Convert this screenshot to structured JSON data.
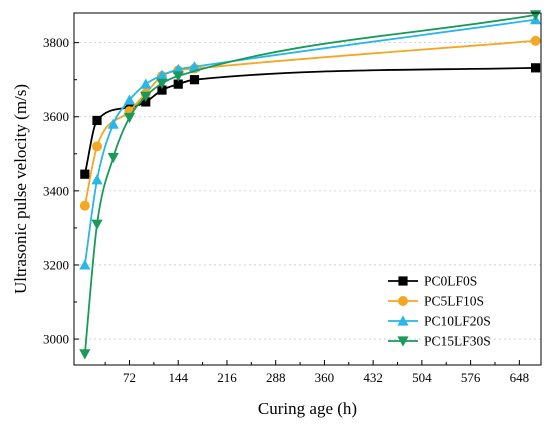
{
  "chart_data": {
    "type": "line",
    "xlabel": "Curing age (h)",
    "ylabel": "Ultrasonic pulse velocity (m/s)",
    "xlim": [
      -10,
      680
    ],
    "ylim": [
      2930,
      3880
    ],
    "x_ticks": [
      72,
      144,
      216,
      288,
      360,
      432,
      504,
      576,
      648
    ],
    "y_ticks": [
      3000,
      3200,
      3400,
      3600,
      3800
    ],
    "grid": "dashed-horizontal",
    "legend_position": "bottom-right",
    "series": [
      {
        "name": "PC0LF0S",
        "color": "#000000",
        "marker": "square",
        "x": [
          6,
          24,
          72,
          96,
          120,
          144,
          168,
          672
        ],
        "y": [
          3445,
          3590,
          3625,
          3640,
          3672,
          3688,
          3700,
          3732
        ]
      },
      {
        "name": "PC5LF10S",
        "color": "#f5a623",
        "marker": "circle",
        "x": [
          6,
          24,
          72,
          96,
          120,
          144,
          168,
          672
        ],
        "y": [
          3360,
          3520,
          3615,
          3663,
          3710,
          3725,
          3730,
          3805
        ]
      },
      {
        "name": "PC10LF20S",
        "color": "#29b6e8",
        "marker": "triangle-up",
        "x": [
          6,
          24,
          48,
          72,
          96,
          120,
          144,
          168,
          672
        ],
        "y": [
          3200,
          3430,
          3580,
          3645,
          3688,
          3712,
          3728,
          3735,
          3862
        ]
      },
      {
        "name": "PC15LF30S",
        "color": "#1a9a5a",
        "marker": "triangle-down",
        "x": [
          6,
          24,
          48,
          72,
          96,
          120,
          144,
          672
        ],
        "y": [
          2960,
          3310,
          3490,
          3598,
          3655,
          3690,
          3710,
          3875
        ]
      }
    ]
  }
}
